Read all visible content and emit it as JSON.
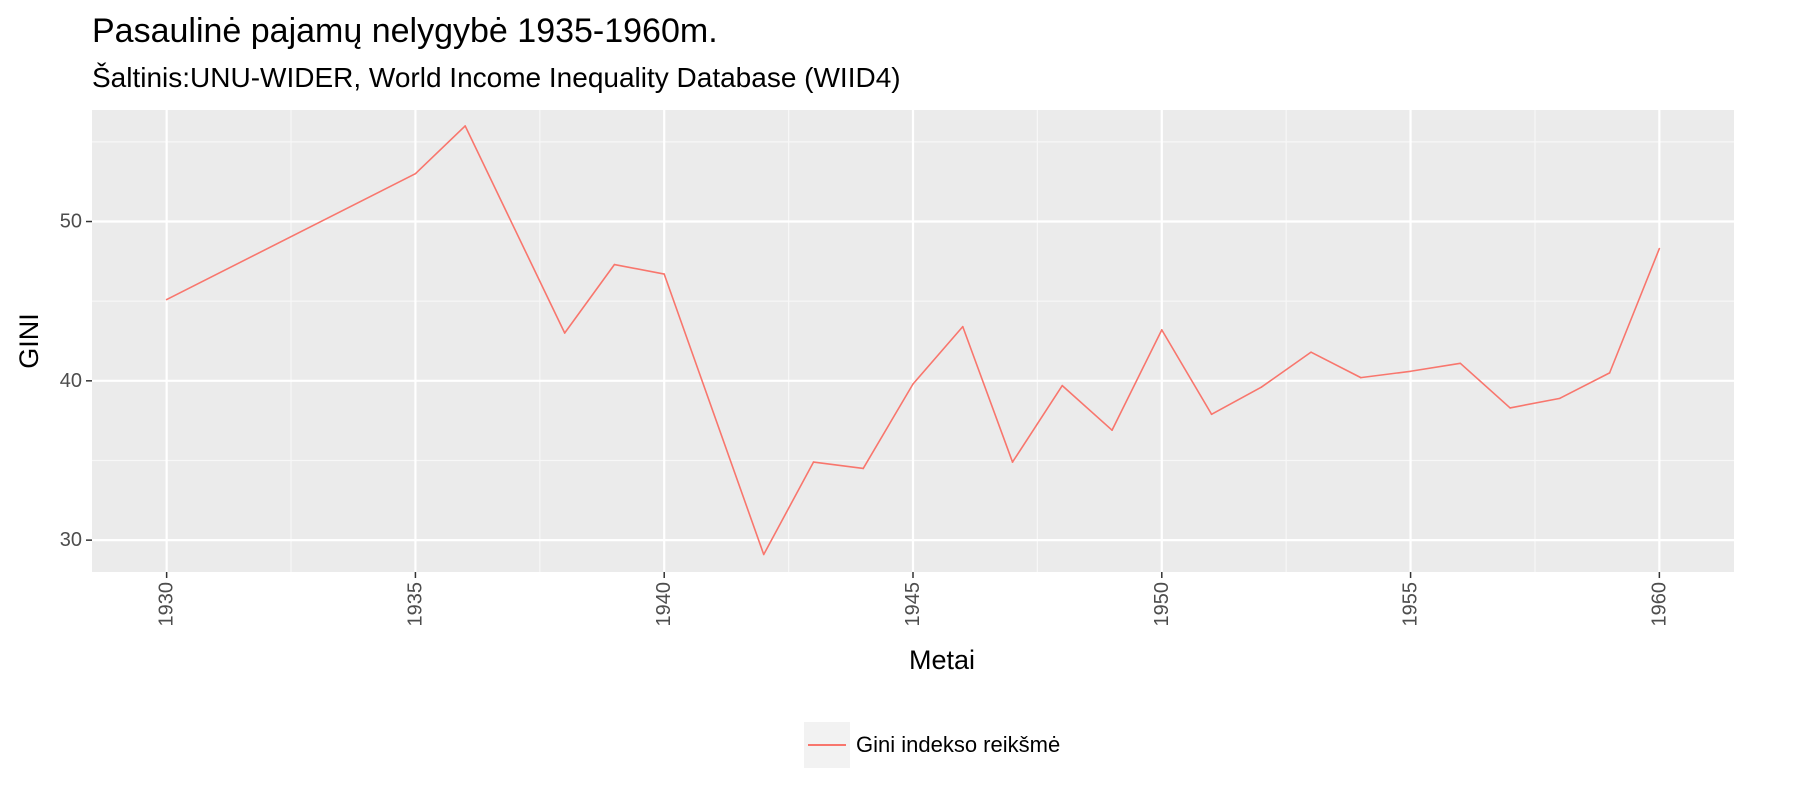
{
  "chart_data": {
    "type": "line",
    "title": "Pasaulinė pajamų nelygybė 1935-1960m.",
    "subtitle": "Šaltinis:UNU-WIDER, World Income Inequality Database (WIID4)",
    "xlabel": "Metai",
    "ylabel": "GINI",
    "xlim": [
      1928.5,
      1961.5
    ],
    "ylim": [
      28.0,
      57.0
    ],
    "x_ticks": [
      1930,
      1935,
      1940,
      1945,
      1950,
      1955,
      1960
    ],
    "y_ticks": [
      30,
      40,
      50
    ],
    "grid": true,
    "legend_position": "bottom",
    "series": [
      {
        "name": "Gini indekso reikšmė",
        "color": "#f8766d",
        "x": [
          1930,
          1935,
          1936,
          1938,
          1939,
          1940,
          1942,
          1943,
          1944,
          1945,
          1946,
          1947,
          1948,
          1949,
          1950,
          1951,
          1952,
          1953,
          1954,
          1955,
          1956,
          1957,
          1958,
          1959,
          1960
        ],
        "y": [
          45.1,
          53.0,
          56.0,
          43.0,
          47.3,
          46.7,
          29.1,
          34.9,
          34.5,
          39.8,
          43.4,
          34.9,
          39.7,
          36.9,
          43.2,
          37.9,
          39.6,
          41.8,
          40.2,
          40.6,
          41.1,
          38.3,
          38.9,
          40.5,
          48.3
        ]
      }
    ]
  }
}
